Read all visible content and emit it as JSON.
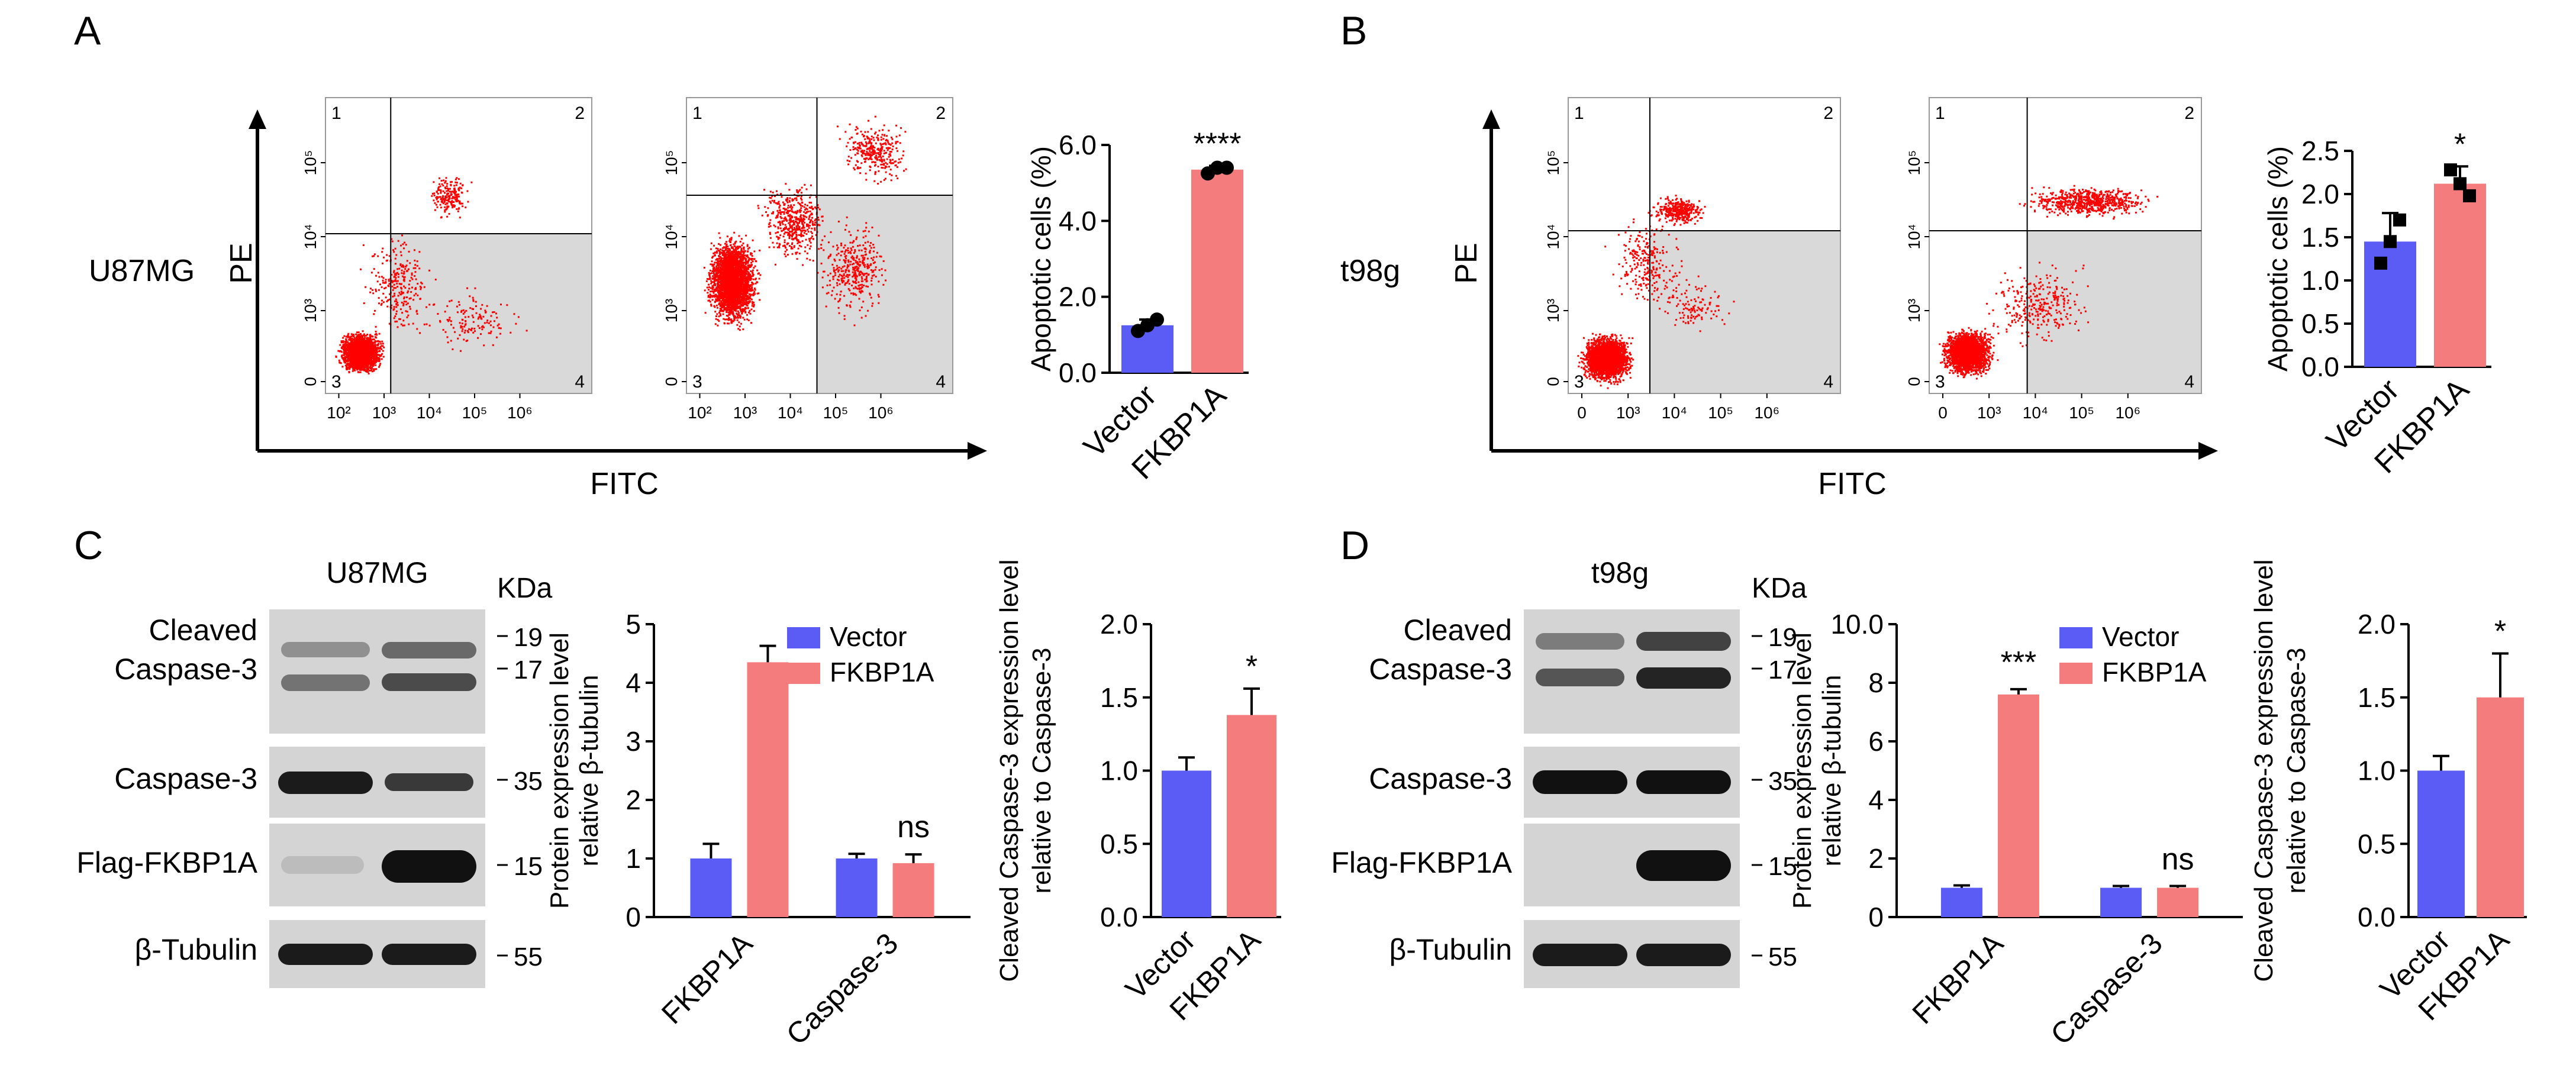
{
  "colors": {
    "vector": "#5b5bf5",
    "fkbp1a": "#f47c7c",
    "dots": "#ff0000",
    "quadrant_fill": "#d9d9d9",
    "q1": "#c8c800",
    "q2": "#cc00cc",
    "q3": "#009900",
    "q4": "#4a86e8"
  },
  "labels": {
    "A": "A",
    "B": "B",
    "C": "C",
    "D": "D",
    "fitc": "FITC",
    "pe": "PE",
    "cell_u87": "U87MG",
    "cell_t98": "t98g",
    "q1": "1",
    "q2": "2",
    "q3": "3",
    "q4": "4",
    "kda": "KDa",
    "cleaved": "Cleaved",
    "casp3": "Caspase-3",
    "flag": "Flag-FKBP1A",
    "tubulin": "β-Tubulin",
    "mw19": "19",
    "mw17": "17",
    "mw35": "35",
    "mw15": "15",
    "mw55": "55",
    "vector": "Vector",
    "fkbp1a": "FKBP1A"
  },
  "flow_ticks": {
    "x_u87": [
      "10²",
      "10³",
      "10⁴",
      "10⁵",
      "10⁶"
    ],
    "x_t98": [
      "0",
      "10³",
      "10⁴",
      "10⁵",
      "10⁶"
    ],
    "y": [
      "0",
      "10³",
      "10⁴",
      "10⁵"
    ]
  },
  "chart_data": [
    {
      "type": "bar",
      "panel": "A",
      "categories": [
        "Vector",
        "FKBP1A"
      ],
      "values": [
        1.25,
        5.35
      ],
      "errors": [
        0.15,
        0.1
      ],
      "points": [
        [
          1.1,
          1.4,
          1.25
        ],
        [
          5.25,
          5.4,
          5.4
        ]
      ],
      "ylabel": "Apoptotic cells (%)",
      "ylim": [
        0,
        6.0
      ],
      "yticks": [
        "0.0",
        "2.0",
        "4.0",
        "6.0"
      ],
      "annotation": "****"
    },
    {
      "type": "bar",
      "panel": "B",
      "categories": [
        "Vector",
        "FKBP1A"
      ],
      "values": [
        1.45,
        2.12
      ],
      "errors": [
        0.33,
        0.2
      ],
      "points": [
        [
          1.2,
          1.7,
          1.45
        ],
        [
          2.28,
          1.98,
          2.12
        ]
      ],
      "ylabel": "Apoptotic cells (%)",
      "ylim": [
        0,
        2.5
      ],
      "yticks": [
        "0.0",
        "0.5",
        "1.0",
        "1.5",
        "2.0",
        "2.5"
      ],
      "annotation": "*"
    },
    {
      "type": "bar",
      "panel": "C",
      "categories": [
        "FKBP1A",
        "Caspase-3"
      ],
      "series": [
        {
          "name": "Vector",
          "values": [
            1.0,
            1.0
          ],
          "errors": [
            0.25,
            0.08
          ]
        },
        {
          "name": "FKBP1A",
          "values": [
            4.35,
            0.92
          ],
          "errors": [
            0.28,
            0.15
          ]
        }
      ],
      "ylabel": "Protein expression level relative β-tubulin",
      "ylim": [
        0,
        5
      ],
      "yticks": [
        "0",
        "1",
        "2",
        "3",
        "4",
        "5"
      ],
      "annotations": [
        "",
        "ns"
      ],
      "legend": "top-right"
    },
    {
      "type": "bar",
      "panel": "C",
      "categories": [
        "Vector",
        "FKBP1A"
      ],
      "values": [
        1.0,
        1.38
      ],
      "errors": [
        0.09,
        0.18
      ],
      "ylabel": "Cleaved Caspase-3 expression level relative to Caspase-3",
      "ylim": [
        0,
        2.0
      ],
      "yticks": [
        "0.0",
        "0.5",
        "1.0",
        "1.5",
        "2.0"
      ],
      "annotation": "*"
    },
    {
      "type": "bar",
      "panel": "D",
      "categories": [
        "FKBP1A",
        "Caspase-3"
      ],
      "series": [
        {
          "name": "Vector",
          "values": [
            1.0,
            1.0
          ],
          "errors": [
            0.08,
            0.06
          ]
        },
        {
          "name": "FKBP1A",
          "values": [
            7.6,
            1.0
          ],
          "errors": [
            0.18,
            0.06
          ]
        }
      ],
      "ylabel": "Protein expression level relative β-tubulin",
      "ylim": [
        0,
        10.0
      ],
      "yticks": [
        "0",
        "2",
        "4",
        "6",
        "8",
        "10.0"
      ],
      "annotations": [
        "***",
        "ns"
      ],
      "legend": "top-right"
    },
    {
      "type": "bar",
      "panel": "D",
      "categories": [
        "Vector",
        "FKBP1A"
      ],
      "values": [
        1.0,
        1.5
      ],
      "errors": [
        0.1,
        0.3
      ],
      "ylabel": "Cleaved Caspase-3 expression level relative to Caspase-3",
      "ylim": [
        0,
        2.0
      ],
      "yticks": [
        "0.0",
        "0.5",
        "1.0",
        "1.5",
        "2.0"
      ],
      "annotation": "*"
    }
  ]
}
